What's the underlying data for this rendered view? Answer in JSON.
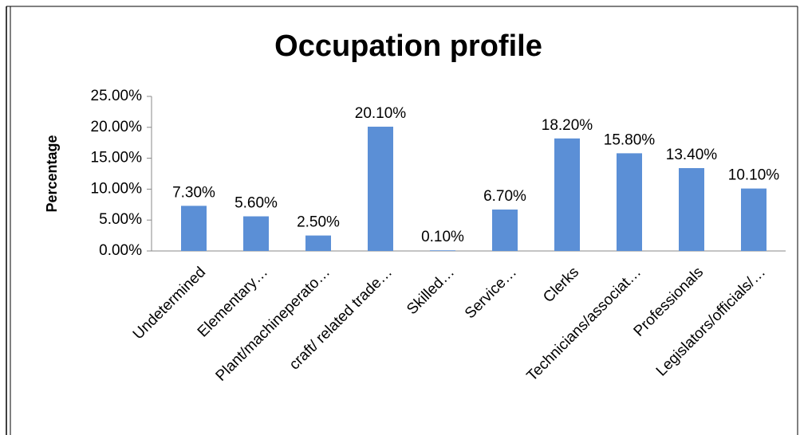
{
  "chart_data": {
    "type": "bar",
    "title": "Occupation profile",
    "y_label": "Percentage",
    "categories": [
      "Undetermined",
      "Elementary…",
      "Plant/machineperato…",
      "craft/ related trade…",
      "Skilled…",
      "Service…",
      "Clerks",
      "Technicians/associat…",
      "Professionals",
      "Legislators/officials/…"
    ],
    "values": [
      7.3,
      5.6,
      2.5,
      20.1,
      0.1,
      6.7,
      18.2,
      15.8,
      13.4,
      10.1
    ],
    "value_labels": [
      "7.30%",
      "5.60%",
      "2.50%",
      "20.10%",
      "0.10%",
      "6.70%",
      "18.20%",
      "15.80%",
      "13.40%",
      "10.10%"
    ],
    "color": "#5b8fd6",
    "ylim": [
      0,
      25
    ],
    "yticks": [
      {
        "value": 0,
        "label": "0.00%"
      },
      {
        "value": 5,
        "label": "5.00%"
      },
      {
        "value": 10,
        "label": "10.00%"
      },
      {
        "value": 15,
        "label": "15.00%"
      },
      {
        "value": 20,
        "label": "20.00%"
      },
      {
        "value": 25,
        "label": "25.00%"
      }
    ],
    "grid": false
  }
}
